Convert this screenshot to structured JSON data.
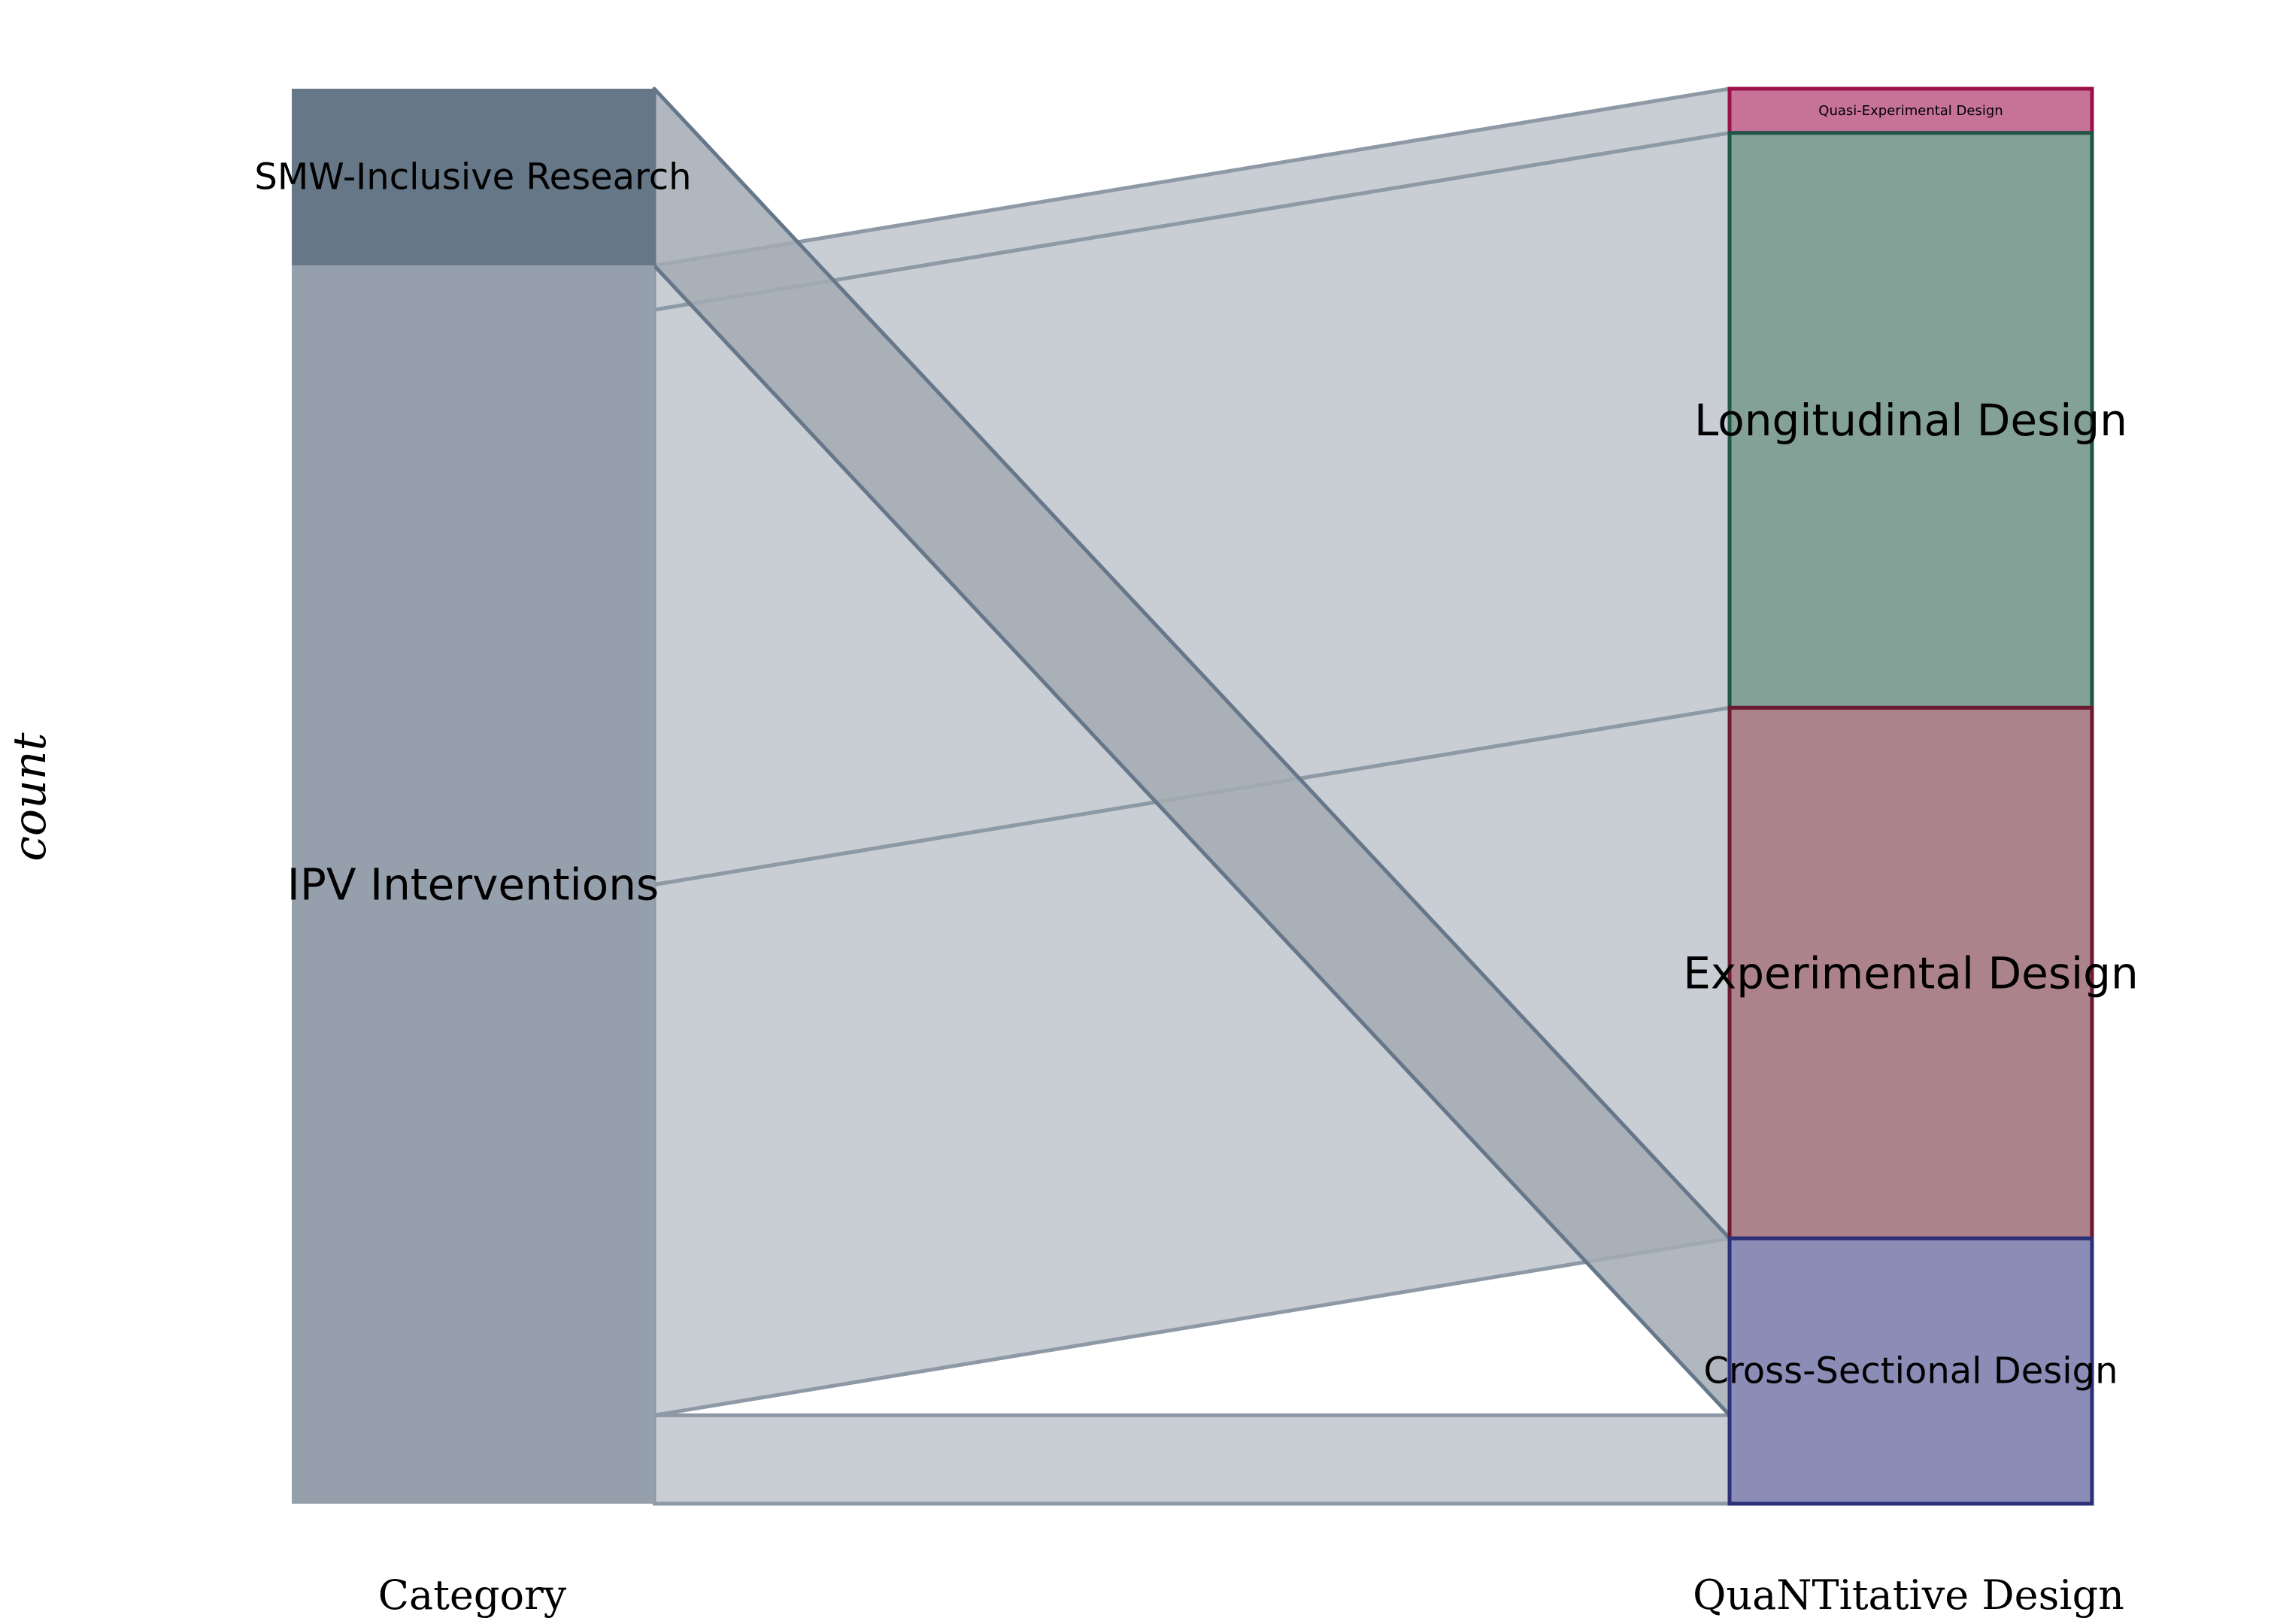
{
  "chart_data": {
    "type": "alluvial",
    "ylabel": "count",
    "axes": [
      {
        "name": "Category",
        "strata": [
          {
            "label": "SMW-Inclusive Research",
            "value": 2,
            "fill": "#667788"
          },
          {
            "label": "IPV Interventions",
            "value": 14,
            "fill": "#96a0ad"
          }
        ]
      },
      {
        "name": "QuaNTitative Design",
        "strata": [
          {
            "label": "Quasi-Experimental Design",
            "value": 0.5,
            "fill": "#c77398",
            "stroke": "#9b1049"
          },
          {
            "label": "Longitudinal Design",
            "value": 6.5,
            "fill": "#84a197",
            "stroke": "#1f5446"
          },
          {
            "label": "Experimental Design",
            "value": 6,
            "fill": "#ad838b",
            "stroke": "#6b1a31"
          },
          {
            "label": "Cross-Sectional Design",
            "value": 3,
            "fill": "#8c8db7",
            "stroke": "#2b3079"
          }
        ]
      }
    ],
    "flows": [
      {
        "from": "SMW-Inclusive Research",
        "to": "Cross-Sectional Design",
        "value": 2
      },
      {
        "from": "IPV Interventions",
        "to": "Quasi-Experimental Design",
        "value": 0.5
      },
      {
        "from": "IPV Interventions",
        "to": "Longitudinal Design",
        "value": 6.5
      },
      {
        "from": "IPV Interventions",
        "to": "Experimental Design",
        "value": 6
      },
      {
        "from": "IPV Interventions",
        "to": "Cross-Sectional Design",
        "value": 1
      }
    ],
    "colors": {
      "flow_fill": "#c9cdd4",
      "flow_fill_highlight": "#a3aab3",
      "flow_stroke": "#8e99a6",
      "flow_stroke_highlight": "#66778a"
    }
  }
}
